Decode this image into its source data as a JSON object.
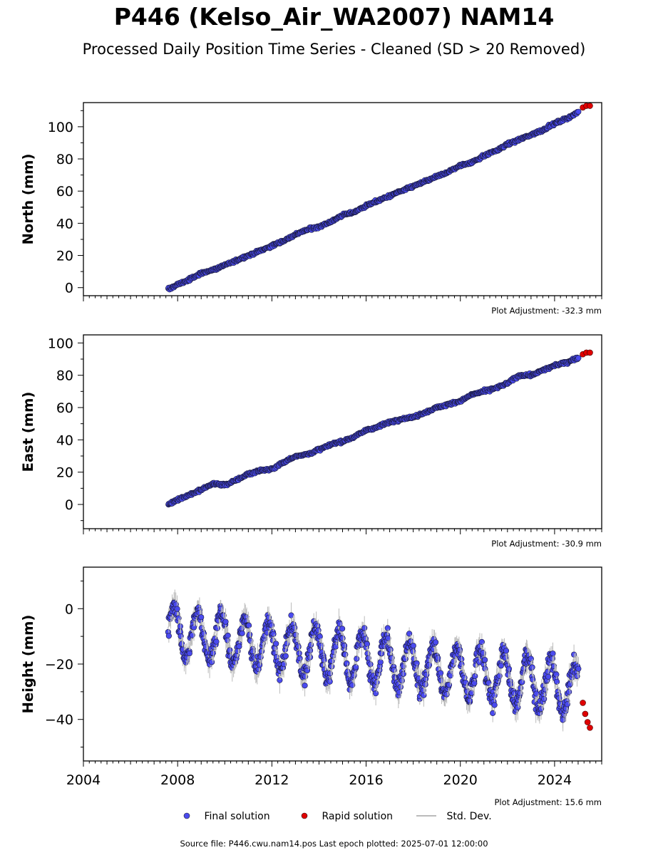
{
  "title": "P446 (Kelso_Air_WA2007) NAM14",
  "subtitle": "Processed Daily Position Time Series - Cleaned (SD > 20 Removed)",
  "legend": {
    "final": "Final solution",
    "rapid": "Rapid solution",
    "std": "Std. Dev."
  },
  "source": "Source file: P446.cwu.nam14.pos  Last epoch plotted: 2025-07-01 12:00:00",
  "colors": {
    "final": "#4a4aee",
    "rapid": "#e00000",
    "std": "#bbbbbb"
  },
  "chart_data": [
    {
      "type": "scatter",
      "ylabel": "North (mm)",
      "adjustment": "Plot Adjustment: -32.3 mm",
      "xlim": [
        2004,
        2026
      ],
      "ylim": [
        -5,
        115
      ],
      "yticks": [
        0,
        20,
        40,
        60,
        80,
        100
      ],
      "grid": false,
      "series": [
        {
          "name": "Final solution",
          "x": [
            2007.6,
            2008.0,
            2008.5,
            2009.0,
            2009.5,
            2010.0,
            2010.5,
            2011.0,
            2011.5,
            2012.0,
            2012.5,
            2013.0,
            2013.5,
            2014.0,
            2014.5,
            2015.0,
            2015.5,
            2016.0,
            2016.5,
            2017.0,
            2017.5,
            2018.0,
            2018.5,
            2019.0,
            2019.5,
            2020.0,
            2020.5,
            2021.0,
            2021.5,
            2022.0,
            2022.5,
            2023.0,
            2023.5,
            2024.0,
            2024.5,
            2025.0
          ],
          "y": [
            -1,
            2,
            5,
            9,
            11,
            14,
            17,
            20,
            23,
            26,
            29,
            33,
            36,
            38,
            41,
            45,
            47,
            51,
            54,
            57,
            60,
            63,
            66,
            69,
            72,
            76,
            78,
            82,
            85,
            89,
            92,
            95,
            98,
            102,
            105,
            109
          ]
        },
        {
          "name": "Rapid solution",
          "x": [
            2025.2,
            2025.35,
            2025.5
          ],
          "y": [
            112,
            113,
            113
          ]
        }
      ]
    },
    {
      "type": "scatter",
      "ylabel": "East (mm)",
      "adjustment": "Plot Adjustment: -30.9 mm",
      "xlim": [
        2004,
        2026
      ],
      "ylim": [
        -15,
        105
      ],
      "yticks": [
        0,
        20,
        40,
        60,
        80,
        100
      ],
      "grid": false,
      "series": [
        {
          "name": "Final solution",
          "x": [
            2007.6,
            2008.0,
            2008.5,
            2009.0,
            2009.5,
            2010.0,
            2010.5,
            2011.0,
            2011.5,
            2012.0,
            2012.5,
            2013.0,
            2013.5,
            2014.0,
            2014.5,
            2015.0,
            2015.5,
            2016.0,
            2016.5,
            2017.0,
            2017.5,
            2018.0,
            2018.5,
            2019.0,
            2019.5,
            2020.0,
            2020.5,
            2021.0,
            2021.5,
            2022.0,
            2022.5,
            2023.0,
            2023.5,
            2024.0,
            2024.5,
            2025.0
          ],
          "y": [
            0,
            3,
            6,
            9,
            13,
            12,
            15,
            19,
            21,
            22,
            26,
            30,
            31,
            34,
            37,
            39,
            42,
            46,
            48,
            51,
            53,
            54,
            57,
            60,
            62,
            64,
            68,
            70,
            72,
            75,
            80,
            80,
            83,
            86,
            88,
            91
          ]
        },
        {
          "name": "Rapid solution",
          "x": [
            2025.2,
            2025.35,
            2025.5
          ],
          "y": [
            93,
            94,
            94
          ]
        }
      ]
    },
    {
      "type": "scatter",
      "ylabel": "Height (mm)",
      "adjustment": "Plot Adjustment: 15.6 mm",
      "xlim": [
        2004,
        2026
      ],
      "ylim": [
        -55,
        15
      ],
      "yticks": [
        -40,
        -20,
        0
      ],
      "xticks": [
        2004,
        2008,
        2012,
        2016,
        2020,
        2024
      ],
      "grid": false,
      "series": [
        {
          "name": "Final solution",
          "x": [
            2007.6,
            2008.0,
            2008.5,
            2009.0,
            2009.5,
            2010.0,
            2010.5,
            2011.0,
            2011.5,
            2012.0,
            2012.5,
            2013.0,
            2013.5,
            2014.0,
            2014.5,
            2015.0,
            2015.5,
            2016.0,
            2016.5,
            2017.0,
            2017.5,
            2018.0,
            2018.5,
            2019.0,
            2019.5,
            2020.0,
            2020.5,
            2021.0,
            2021.5,
            2022.0,
            2022.5,
            2023.0,
            2023.5,
            2024.0,
            2024.5,
            2025.0
          ],
          "y": [
            -5,
            -20,
            0,
            -22,
            -5,
            -20,
            -8,
            -24,
            -10,
            -25,
            -7,
            -24,
            -12,
            -25,
            -12,
            -26,
            -8,
            -28,
            -15,
            -32,
            -15,
            -30,
            -18,
            -34,
            -20,
            -36,
            -22,
            -40,
            -25,
            -38,
            -22,
            -40,
            -25,
            -42,
            -28,
            -40
          ]
        },
        {
          "name": "Rapid solution",
          "x": [
            2025.2,
            2025.3,
            2025.4,
            2025.5
          ],
          "y": [
            -34,
            -38,
            -41,
            -43
          ]
        }
      ]
    }
  ]
}
